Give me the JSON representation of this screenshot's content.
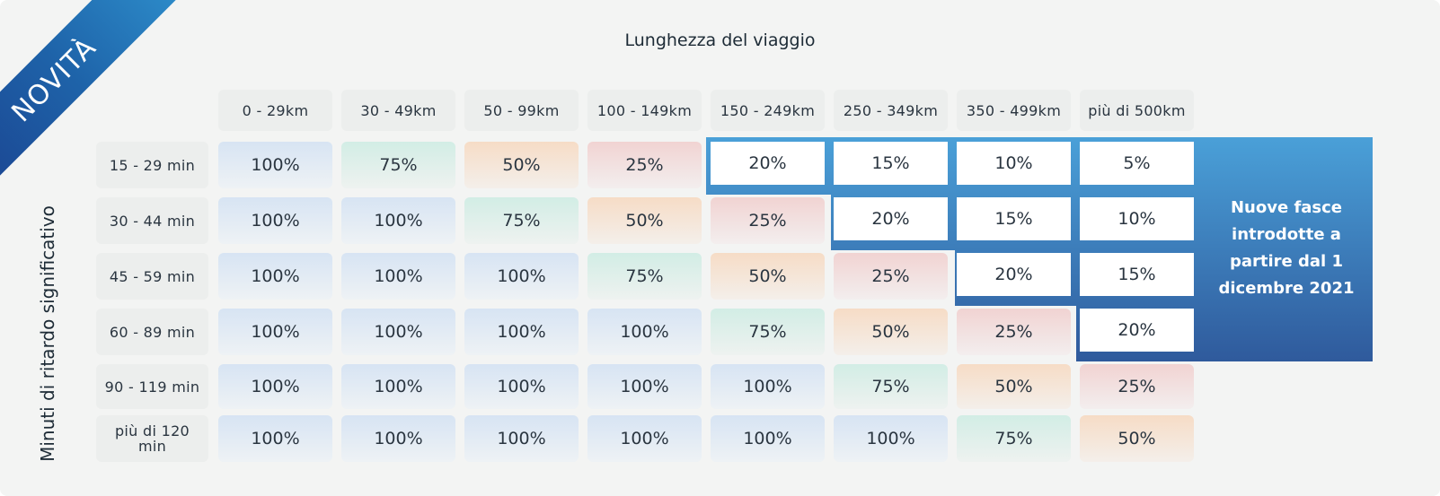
{
  "badge": "NOVITÀ",
  "title": "Lunghezza del viaggio",
  "y_label": "Minuti di ritardo significativo",
  "columns": [
    "0 - 29km",
    "30 - 49km",
    "50 - 99km",
    "100 - 149km",
    "150 - 249km",
    "250 - 349km",
    "350 - 499km",
    "più di 500km"
  ],
  "rows": [
    {
      "label": "15 - 29 min",
      "values": [
        "100%",
        "75%",
        "50%",
        "25%",
        "20%",
        "15%",
        "10%",
        "5%"
      ]
    },
    {
      "label": "30 - 44 min",
      "values": [
        "100%",
        "100%",
        "75%",
        "50%",
        "25%",
        "20%",
        "15%",
        "10%"
      ]
    },
    {
      "label": "45 - 59 min",
      "values": [
        "100%",
        "100%",
        "100%",
        "75%",
        "50%",
        "25%",
        "20%",
        "15%"
      ]
    },
    {
      "label": "60 - 89 min",
      "values": [
        "100%",
        "100%",
        "100%",
        "100%",
        "75%",
        "50%",
        "25%",
        "20%"
      ]
    },
    {
      "label": "90 - 119 min",
      "values": [
        "100%",
        "100%",
        "100%",
        "100%",
        "100%",
        "75%",
        "50%",
        "25%"
      ]
    },
    {
      "label": "più di 120 min",
      "values": [
        "100%",
        "100%",
        "100%",
        "100%",
        "100%",
        "100%",
        "75%",
        "50%"
      ]
    }
  ],
  "new_bands_note": "Nuove fasce introdotte a partire dal 1 dicembre 2021",
  "colors": {
    "badge_gradient": [
      "#1b3f8d",
      "#2e8fcc"
    ],
    "new_band_gradient": [
      "#4aa0d8",
      "#2f5a9c"
    ],
    "cell_blue": "#d7e4f3",
    "cell_green": "#d2ede5",
    "cell_orange": "#f6dcc6",
    "cell_red": "#f1d3d2"
  }
}
